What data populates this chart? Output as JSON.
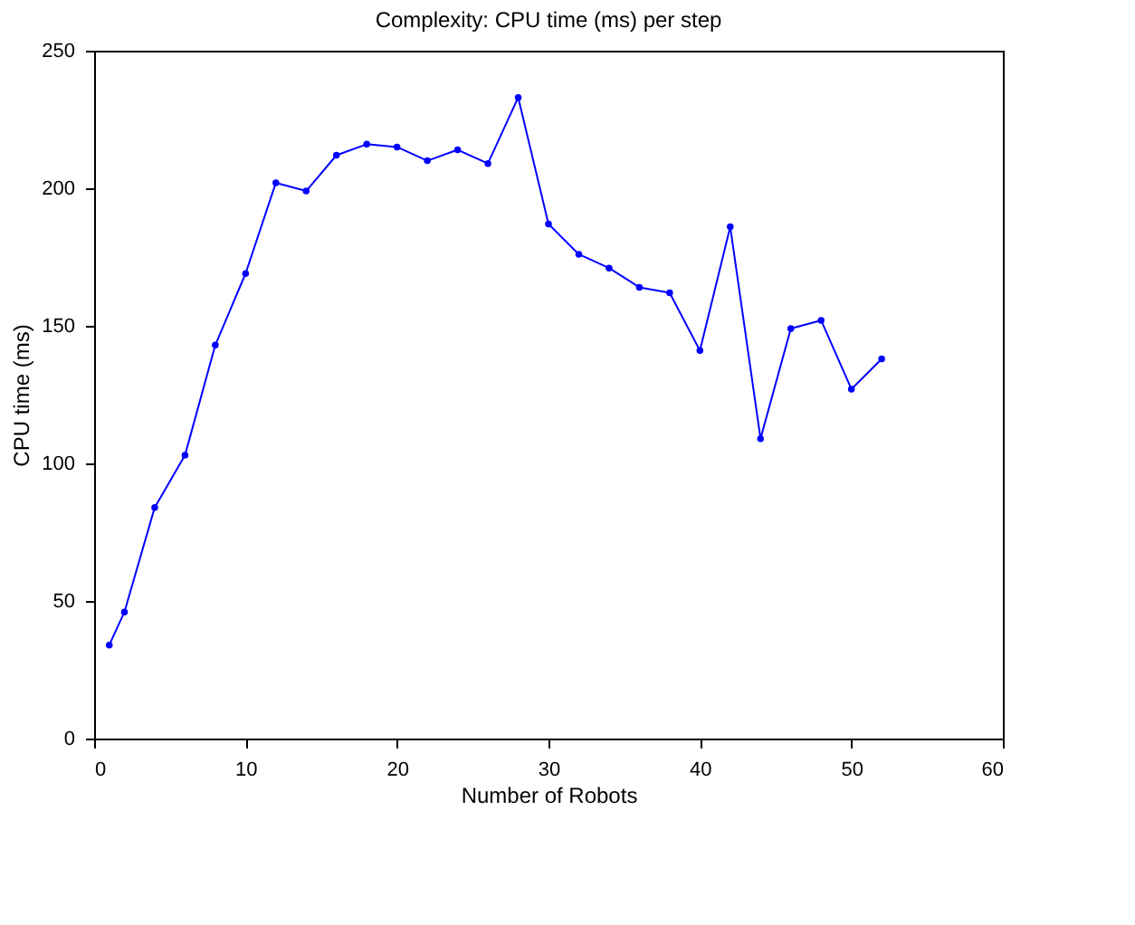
{
  "chart_data": {
    "type": "line",
    "title": "Complexity: CPU time (ms) per step",
    "xlabel": "Number of Robots",
    "ylabel": "CPU time (ms)",
    "x": [
      1,
      2,
      4,
      6,
      8,
      10,
      12,
      14,
      16,
      18,
      20,
      22,
      24,
      26,
      28,
      30,
      32,
      34,
      36,
      38,
      40,
      42,
      44,
      46,
      48,
      50,
      52
    ],
    "series": [
      {
        "color": "#0000ff",
        "values": [
          34,
          46,
          84,
          103,
          143,
          169,
          202,
          199,
          212,
          216,
          215,
          210,
          214,
          209,
          233,
          187,
          176,
          171,
          164,
          162,
          141,
          186,
          109,
          149,
          152,
          127,
          138
        ]
      }
    ],
    "xlim": [
      0,
      60
    ],
    "xticks": [
      0,
      10,
      20,
      30,
      40,
      50,
      60
    ],
    "ylim": [
      0,
      250
    ],
    "yticks": [
      0,
      50,
      100,
      150,
      200,
      250
    ],
    "grid": false,
    "marker": "circle",
    "line_style": "solid"
  }
}
